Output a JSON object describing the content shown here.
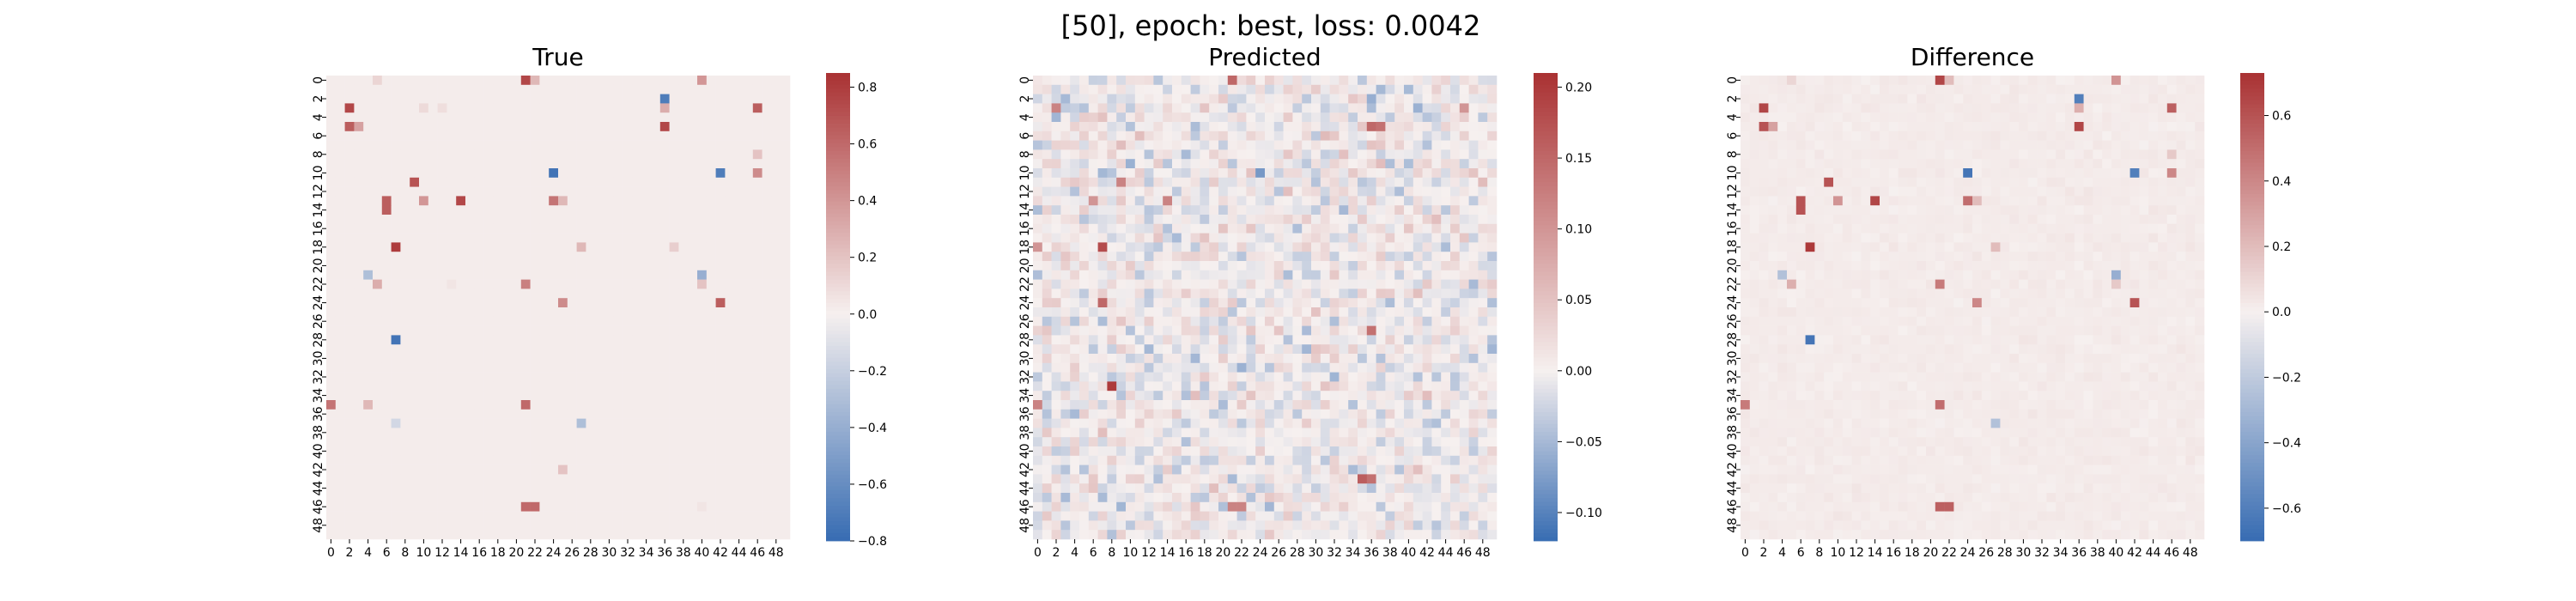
{
  "figure": {
    "suptitle": "[50], epoch: best, loss: 0.0042"
  },
  "chart_data": [
    {
      "type": "heatmap",
      "title": "True",
      "shape": [
        50,
        50
      ],
      "tick_labels": [
        "0",
        "2",
        "4",
        "6",
        "8",
        "10",
        "12",
        "14",
        "16",
        "18",
        "20",
        "22",
        "24",
        "26",
        "28",
        "30",
        "32",
        "34",
        "36",
        "38",
        "40",
        "42",
        "44",
        "46",
        "48"
      ],
      "colormap": "vlag",
      "colorbar": {
        "vmin": -0.8,
        "vmax": 0.85,
        "ticks": [
          -0.8,
          -0.6,
          -0.4,
          -0.2,
          0.0,
          0.2,
          0.4,
          0.6,
          0.8
        ],
        "tick_labels": [
          "−0.8",
          "−0.6",
          "−0.4",
          "−0.2",
          "0.0",
          "0.2",
          "0.4",
          "0.6",
          "0.8"
        ]
      },
      "background_value": 0.02,
      "cells": [
        [
          0,
          21,
          0.75
        ],
        [
          0,
          22,
          0.25
        ],
        [
          0,
          40,
          0.4
        ],
        [
          0,
          5,
          0.12
        ],
        [
          2,
          36,
          -0.7
        ],
        [
          3,
          2,
          0.75
        ],
        [
          3,
          36,
          0.3
        ],
        [
          3,
          10,
          0.1
        ],
        [
          3,
          12,
          0.08
        ],
        [
          3,
          46,
          0.65
        ],
        [
          5,
          2,
          0.65
        ],
        [
          5,
          3,
          0.35
        ],
        [
          5,
          36,
          0.75
        ],
        [
          8,
          46,
          0.2
        ],
        [
          10,
          24,
          -0.75
        ],
        [
          10,
          42,
          -0.7
        ],
        [
          10,
          46,
          0.45
        ],
        [
          11,
          9,
          0.7
        ],
        [
          13,
          10,
          0.4
        ],
        [
          13,
          14,
          0.75
        ],
        [
          13,
          24,
          0.55
        ],
        [
          13,
          25,
          0.25
        ],
        [
          13,
          6,
          0.65
        ],
        [
          14,
          6,
          0.65
        ],
        [
          18,
          7,
          0.8
        ],
        [
          18,
          27,
          0.25
        ],
        [
          18,
          37,
          0.15
        ],
        [
          21,
          4,
          -0.3
        ],
        [
          21,
          40,
          -0.4
        ],
        [
          22,
          5,
          0.3
        ],
        [
          22,
          21,
          0.5
        ],
        [
          22,
          13,
          0.05
        ],
        [
          22,
          40,
          0.2
        ],
        [
          24,
          42,
          0.65
        ],
        [
          24,
          25,
          0.45
        ],
        [
          28,
          7,
          -0.75
        ],
        [
          35,
          0,
          0.55
        ],
        [
          35,
          4,
          0.25
        ],
        [
          35,
          21,
          0.6
        ],
        [
          37,
          7,
          -0.15
        ],
        [
          37,
          27,
          -0.3
        ],
        [
          42,
          25,
          0.2
        ],
        [
          46,
          40,
          0.05
        ],
        [
          46,
          21,
          0.6
        ],
        [
          46,
          22,
          0.6
        ]
      ]
    },
    {
      "type": "heatmap",
      "title": "Predicted",
      "shape": [
        50,
        50
      ],
      "tick_labels": [
        "0",
        "2",
        "4",
        "6",
        "8",
        "10",
        "12",
        "14",
        "16",
        "18",
        "20",
        "22",
        "24",
        "26",
        "28",
        "30",
        "32",
        "34",
        "36",
        "38",
        "40",
        "42",
        "44",
        "46",
        "48"
      ],
      "colormap": "vlag",
      "colorbar": {
        "vmin": -0.12,
        "vmax": 0.21,
        "ticks": [
          -0.1,
          -0.05,
          0.0,
          0.05,
          0.1,
          0.15,
          0.2
        ],
        "tick_labels": [
          "−0.10",
          "−0.05",
          "0.00",
          "0.05",
          "0.10",
          "0.15",
          "0.20"
        ]
      },
      "background_value": 0.0,
      "noise_amplitude": 0.06,
      "cells": [
        [
          0,
          21,
          0.15
        ],
        [
          2,
          36,
          -0.06
        ],
        [
          3,
          2,
          0.12
        ],
        [
          3,
          46,
          0.1
        ],
        [
          5,
          36,
          0.15
        ],
        [
          5,
          37,
          0.14
        ],
        [
          10,
          24,
          -0.08
        ],
        [
          11,
          9,
          0.12
        ],
        [
          13,
          6,
          0.1
        ],
        [
          13,
          14,
          0.12
        ],
        [
          18,
          7,
          0.18
        ],
        [
          18,
          0,
          0.1
        ],
        [
          24,
          7,
          0.15
        ],
        [
          27,
          36,
          0.14
        ],
        [
          33,
          8,
          0.2
        ],
        [
          35,
          0,
          0.12
        ],
        [
          43,
          35,
          0.16
        ],
        [
          43,
          36,
          0.14
        ],
        [
          46,
          21,
          0.12
        ],
        [
          46,
          22,
          0.12
        ]
      ]
    },
    {
      "type": "heatmap",
      "title": "Difference",
      "shape": [
        50,
        50
      ],
      "tick_labels": [
        "0",
        "2",
        "4",
        "6",
        "8",
        "10",
        "12",
        "14",
        "16",
        "18",
        "20",
        "22",
        "24",
        "26",
        "28",
        "30",
        "32",
        "34",
        "36",
        "38",
        "40",
        "42",
        "44",
        "46",
        "48"
      ],
      "colormap": "vlag",
      "colorbar": {
        "vmin": -0.7,
        "vmax": 0.73,
        "ticks": [
          -0.6,
          -0.4,
          -0.2,
          0.0,
          0.2,
          0.4,
          0.6
        ],
        "tick_labels": [
          "−0.6",
          "−0.4",
          "−0.2",
          "0.0",
          "0.2",
          "0.4",
          "0.6"
        ]
      },
      "background_value": 0.02,
      "noise_amplitude": 0.025,
      "cells": [
        [
          0,
          21,
          0.65
        ],
        [
          0,
          22,
          0.2
        ],
        [
          0,
          40,
          0.35
        ],
        [
          0,
          5,
          0.1
        ],
        [
          2,
          36,
          -0.6
        ],
        [
          3,
          2,
          0.65
        ],
        [
          3,
          36,
          0.25
        ],
        [
          3,
          46,
          0.55
        ],
        [
          5,
          2,
          0.6
        ],
        [
          5,
          3,
          0.3
        ],
        [
          5,
          36,
          0.65
        ],
        [
          8,
          46,
          0.15
        ],
        [
          10,
          24,
          -0.65
        ],
        [
          10,
          42,
          -0.6
        ],
        [
          10,
          46,
          0.4
        ],
        [
          11,
          9,
          0.6
        ],
        [
          13,
          10,
          0.35
        ],
        [
          13,
          14,
          0.65
        ],
        [
          13,
          24,
          0.5
        ],
        [
          13,
          25,
          0.2
        ],
        [
          13,
          6,
          0.6
        ],
        [
          14,
          6,
          0.6
        ],
        [
          18,
          7,
          0.7
        ],
        [
          18,
          27,
          0.2
        ],
        [
          21,
          4,
          -0.25
        ],
        [
          21,
          40,
          -0.35
        ],
        [
          22,
          5,
          0.25
        ],
        [
          22,
          21,
          0.45
        ],
        [
          22,
          40,
          0.15
        ],
        [
          24,
          42,
          0.6
        ],
        [
          24,
          25,
          0.4
        ],
        [
          28,
          7,
          -0.65
        ],
        [
          35,
          0,
          0.45
        ],
        [
          35,
          21,
          0.5
        ],
        [
          37,
          27,
          -0.25
        ],
        [
          46,
          21,
          0.55
        ],
        [
          46,
          22,
          0.55
        ]
      ]
    }
  ]
}
